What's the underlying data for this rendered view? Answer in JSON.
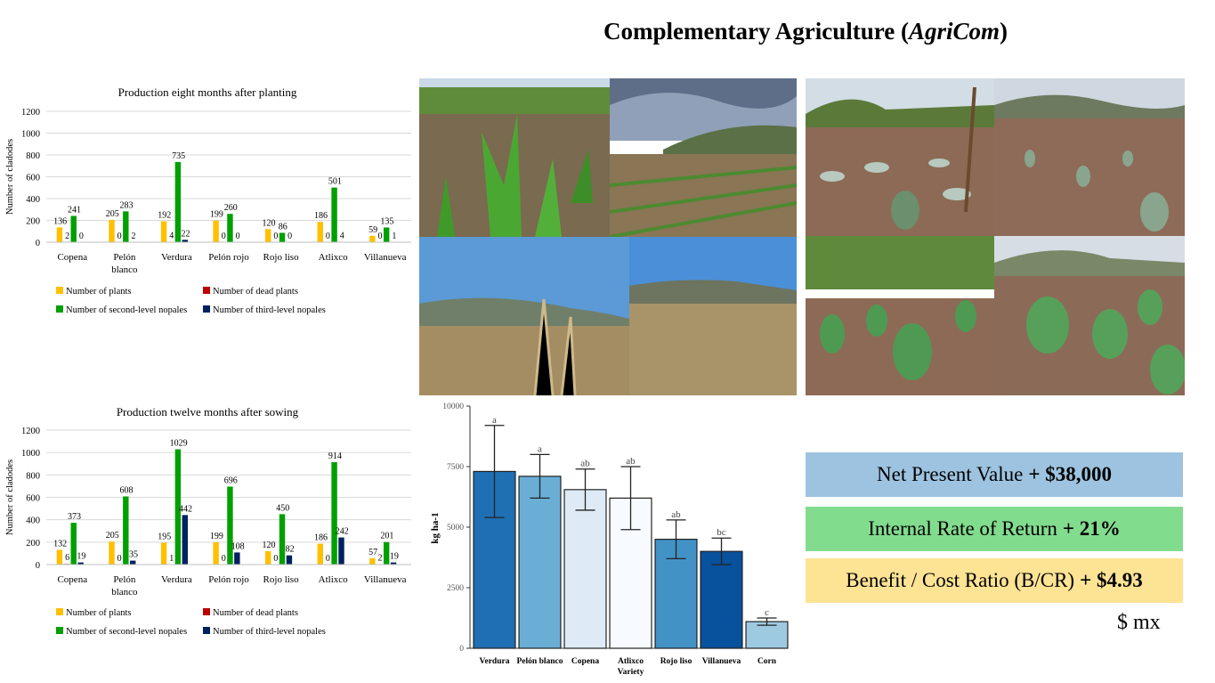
{
  "title": {
    "main": "Complementary Agriculture (",
    "italic": "AgriCom",
    "close": ")"
  },
  "colors": {
    "plants": "#FFC000",
    "dead": "#C00000",
    "second": "#00A000",
    "third": "#002060",
    "box1": "#9DC3E0",
    "box2": "#82DC8E",
    "box3": "#FDE394"
  },
  "chart_data": [
    {
      "type": "bar",
      "title": "Production eight months after planting",
      "ylabel": "Number of cladodes",
      "ylim": [
        0,
        1200
      ],
      "yticks": [
        0,
        200,
        400,
        600,
        800,
        1000,
        1200
      ],
      "categories": [
        "Copena",
        "Pelón blanco",
        "Verdura",
        "Pelón rojo",
        "Rojo liso",
        "Atlixco",
        "Villanueva"
      ],
      "series": [
        {
          "name": "Number of plants",
          "values": [
            136,
            205,
            192,
            199,
            120,
            186,
            59
          ]
        },
        {
          "name": "Number of dead plants",
          "values": [
            2,
            0,
            4,
            0,
            0,
            0,
            0
          ]
        },
        {
          "name": "Number of second-level nopales",
          "values": [
            241,
            283,
            735,
            260,
            86,
            501,
            135
          ]
        },
        {
          "name": "Number of third-level nopales",
          "values": [
            0,
            2,
            22,
            0,
            0,
            4,
            1
          ]
        }
      ],
      "legend": "bottom"
    },
    {
      "type": "bar",
      "title": "Production twelve months after sowing",
      "ylabel": "Number of cladodes",
      "ylim": [
        0,
        1200
      ],
      "yticks": [
        0,
        200,
        400,
        600,
        800,
        1000,
        1200
      ],
      "categories": [
        "Copena",
        "Pelón blanco",
        "Verdura",
        "Pelón rojo",
        "Rojo liso",
        "Atlixco",
        "Villanueva"
      ],
      "series": [
        {
          "name": "Number of plants",
          "values": [
            132,
            205,
            195,
            199,
            120,
            186,
            57
          ]
        },
        {
          "name": "Number of dead plants",
          "values": [
            6,
            0,
            1,
            0,
            0,
            0,
            2
          ]
        },
        {
          "name": "Number of second-level nopales",
          "values": [
            373,
            608,
            1029,
            696,
            450,
            914,
            201
          ]
        },
        {
          "name": "Number of third-level nopales",
          "values": [
            19,
            35,
            442,
            108,
            82,
            242,
            19
          ]
        }
      ],
      "legend": "bottom"
    },
    {
      "type": "bar",
      "ylabel": "kg ha-1",
      "ylim": [
        0,
        10000
      ],
      "yticks": [
        0,
        2500,
        5000,
        7500,
        10000
      ],
      "categories": [
        "Verdura",
        "Pelón blanco",
        "Copena",
        "Atlixco Variety",
        "Rojo liso",
        "Villanueva",
        "Corn"
      ],
      "values": [
        7300,
        7100,
        6550,
        6200,
        4500,
        4000,
        1100
      ],
      "errors": [
        1900,
        900,
        850,
        1300,
        800,
        550,
        150
      ],
      "letters": [
        "a",
        "a",
        "ab",
        "ab",
        "ab",
        "bc",
        "c"
      ],
      "bar_colors": [
        "#1F6FB4",
        "#6AAED6",
        "#DEEBF7",
        "#F7FBFF",
        "#4292C6",
        "#08519C",
        "#9ECAE1"
      ]
    }
  ],
  "metrics": [
    {
      "label": "Net Present Value",
      "value": "+ $38,000"
    },
    {
      "label": "Internal Rate of Return",
      "value": "+ 21%"
    },
    {
      "label": "Benefit / Cost Ratio (B/CR)",
      "value": "+ $4.93"
    }
  ],
  "currency": "$ mx"
}
